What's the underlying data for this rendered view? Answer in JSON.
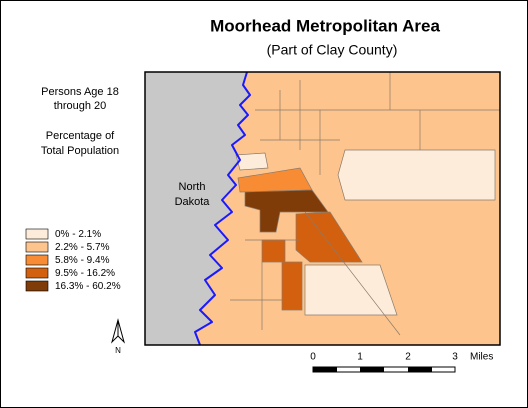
{
  "header": {
    "title": "Moorhead Metropolitan Area",
    "subtitle": "(Part of Clay County)"
  },
  "legend": {
    "heading": [
      "Persons Age 18",
      "through 20"
    ],
    "subheading": [
      "Percentage of",
      "Total Population"
    ],
    "items": [
      {
        "label": "0% - 2.1%",
        "color": "#fdecda"
      },
      {
        "label": "2.2% - 5.7%",
        "color": "#fdc48e"
      },
      {
        "label": "5.8% - 9.4%",
        "color": "#f78c35"
      },
      {
        "label": "9.5% - 16.2%",
        "color": "#d3600f"
      },
      {
        "label": "16.3% - 60.2%",
        "color": "#7f3b08"
      }
    ]
  },
  "map": {
    "region_label": [
      "North",
      "Dakota"
    ]
  },
  "north": "N",
  "scale": {
    "labels": [
      "0",
      "1",
      "2",
      "3"
    ],
    "unit": "Miles"
  }
}
